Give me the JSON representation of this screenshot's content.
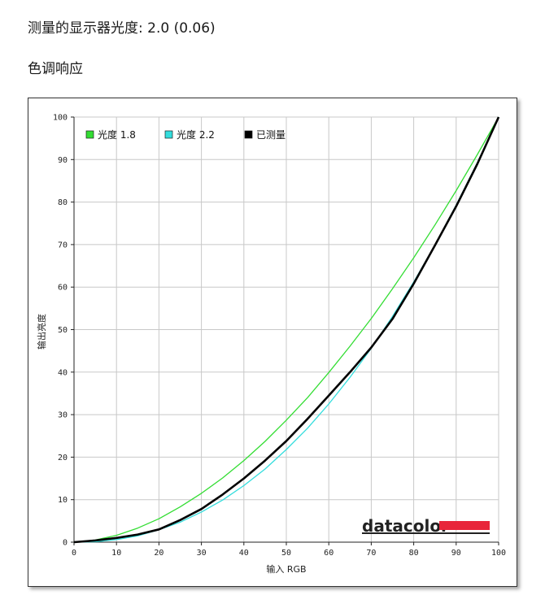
{
  "header": {
    "measured_label": "测量的显示器光度: 2.0 (0.06)",
    "section_title": "色调响应"
  },
  "brand": {
    "name": "datacolor",
    "bar_color": "#e8253a"
  },
  "chart_data": {
    "type": "line",
    "xlabel": "输入 RGB",
    "ylabel": "输出亮度",
    "xlim": [
      0,
      100
    ],
    "ylim": [
      0,
      100
    ],
    "xticks": [
      0,
      10,
      20,
      30,
      40,
      50,
      60,
      70,
      80,
      90,
      100
    ],
    "yticks": [
      0,
      10,
      20,
      30,
      40,
      50,
      60,
      70,
      80,
      90,
      100
    ],
    "grid": true,
    "legend_position": "top-left",
    "series": [
      {
        "name": "光度 1.8",
        "color": "#33dd33",
        "x": [
          0,
          5,
          10,
          15,
          20,
          25,
          30,
          35,
          40,
          45,
          50,
          55,
          60,
          65,
          70,
          75,
          80,
          85,
          90,
          95,
          100
        ],
        "y": [
          0,
          0.5,
          1.6,
          3.3,
          5.5,
          8.3,
          11.5,
          15.1,
          19.2,
          23.7,
          28.7,
          34.0,
          39.9,
          46.1,
          52.6,
          59.6,
          66.9,
          74.6,
          82.7,
          91.2,
          100
        ]
      },
      {
        "name": "光度 2.2",
        "color": "#33dddd",
        "x": [
          0,
          5,
          10,
          15,
          20,
          25,
          30,
          35,
          40,
          45,
          50,
          55,
          60,
          65,
          70,
          75,
          80,
          85,
          90,
          95,
          100
        ],
        "y": [
          0,
          0.1,
          0.6,
          1.5,
          2.9,
          4.7,
          7.1,
          9.9,
          13.3,
          17.2,
          21.8,
          26.8,
          32.5,
          38.8,
          45.6,
          53.1,
          61.2,
          69.9,
          79.3,
          89.3,
          100
        ]
      },
      {
        "name": "已测量",
        "color": "#000000",
        "x": [
          0,
          5,
          10,
          15,
          20,
          25,
          30,
          35,
          40,
          45,
          50,
          55,
          60,
          65,
          70,
          75,
          80,
          85,
          90,
          95,
          100
        ],
        "y": [
          0,
          0.4,
          1.0,
          1.8,
          3.0,
          5.2,
          7.8,
          11.2,
          15.0,
          19.2,
          23.8,
          29.0,
          34.5,
          40.0,
          45.8,
          52.5,
          60.8,
          69.8,
          79.0,
          89.0,
          100
        ]
      }
    ]
  }
}
